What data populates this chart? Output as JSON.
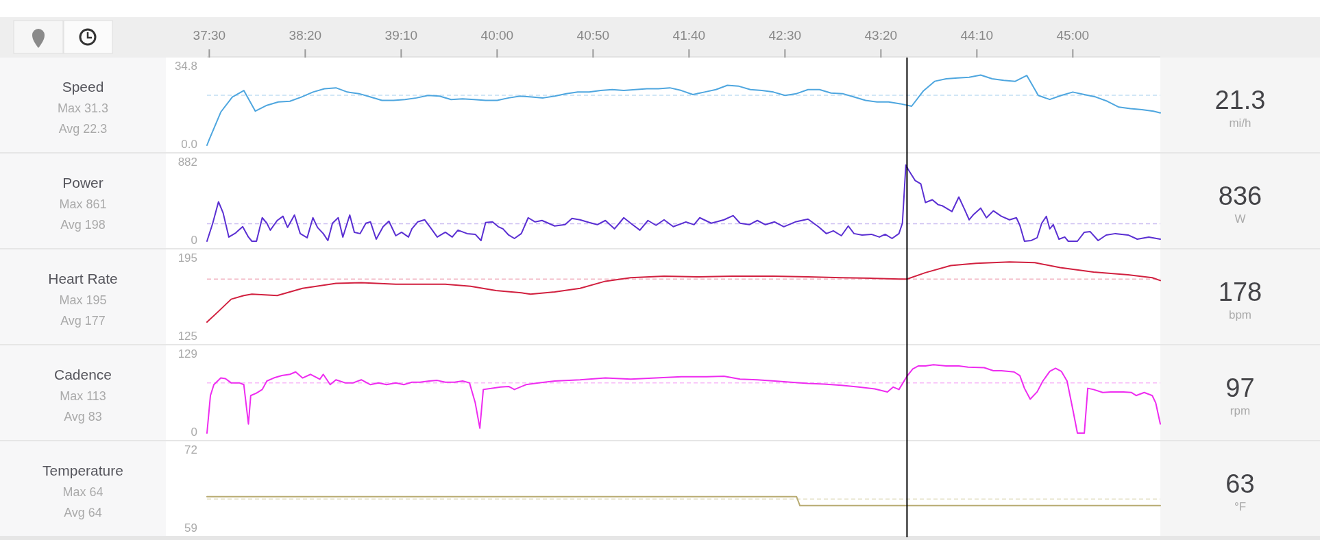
{
  "chart_data": [
    {
      "type": "line",
      "title": "Speed",
      "color": "#4ea6df",
      "xlim": [
        37.48,
        45.76
      ],
      "ylim": [
        0,
        34.8
      ],
      "xticks": [
        {
          "value": 37.5,
          "label": "37:30"
        },
        {
          "value": 38.3333,
          "label": "38:20"
        },
        {
          "value": 39.1667,
          "label": "39:10"
        },
        {
          "value": 40,
          "label": "40:00"
        },
        {
          "value": 40.8333,
          "label": "40:50"
        },
        {
          "value": 41.6667,
          "label": "41:40"
        },
        {
          "value": 42.5,
          "label": "42:30"
        },
        {
          "value": 43.3333,
          "label": "43:20"
        },
        {
          "value": 44.1667,
          "label": "44:10"
        },
        {
          "value": 45,
          "label": "45:00"
        }
      ],
      "yticks": [
        {
          "value": 0,
          "label": "0.0"
        },
        {
          "value": 34.8,
          "label": "34.8"
        }
      ],
      "x": [
        37.48,
        37.5,
        37.6,
        37.7,
        37.8,
        37.9,
        38.0,
        38.1,
        38.2,
        38.3,
        38.4,
        38.5,
        38.6,
        38.7,
        38.8,
        38.9,
        39.0,
        39.1,
        39.2,
        39.3,
        39.4,
        39.5,
        39.6,
        39.7,
        39.8,
        39.9,
        40.0,
        40.1,
        40.2,
        40.3,
        40.4,
        40.5,
        40.6,
        40.7,
        40.8,
        40.9,
        41.0,
        41.1,
        41.2,
        41.3,
        41.4,
        41.5,
        41.6,
        41.7,
        41.8,
        41.9,
        42.0,
        42.1,
        42.2,
        42.3,
        42.4,
        42.5,
        42.6,
        42.7,
        42.8,
        42.9,
        43.0,
        43.1,
        43.2,
        43.3,
        43.4,
        43.5,
        43.6,
        43.7,
        43.8,
        43.9,
        44.0,
        44.1,
        44.2,
        44.3,
        44.4,
        44.5,
        44.6,
        44.7,
        44.8,
        44.9,
        45.0,
        45.1,
        45.2,
        45.3,
        45.4,
        45.5,
        45.6,
        45.7,
        45.76
      ],
      "values": [
        0,
        2.6,
        14.8,
        21.5,
        24.4,
        15.2,
        17.8,
        19.3,
        19.6,
        21.5,
        23.7,
        25.2,
        25.6,
        23.7,
        23.0,
        21.5,
        20.0,
        20.0,
        20.4,
        21.1,
        22.2,
        21.9,
        20.4,
        20.7,
        20.4,
        20.0,
        20.0,
        21.1,
        21.9,
        21.5,
        21.1,
        21.9,
        23.0,
        23.7,
        23.7,
        24.4,
        24.8,
        24.4,
        24.8,
        25.2,
        25.2,
        25.6,
        24.4,
        22.6,
        23.7,
        24.8,
        26.7,
        26.3,
        24.8,
        24.4,
        23.7,
        22.2,
        23.0,
        24.8,
        24.8,
        23.3,
        23.0,
        21.5,
        20.0,
        19.3,
        19.3,
        18.5,
        17.4,
        24.1,
        28.5,
        29.6,
        30.0,
        30.3,
        31.3,
        29.6,
        28.9,
        28.5,
        31.1,
        22.2,
        20.4,
        22.2,
        23.7,
        22.6,
        21.5,
        19.6,
        17.0,
        16.3,
        15.9,
        15.2,
        14.4
      ],
      "annotations": [
        "Max 31.3",
        "Avg 22.3",
        "21.3",
        "mi/h"
      ],
      "ref_lines": [
        {
          "axis": "y",
          "value": 22.3,
          "color": "#c2def3",
          "line_style": "dashed"
        },
        {
          "axis": "x",
          "value": 43.56,
          "color": "#000000",
          "line_style": "solid"
        }
      ]
    },
    {
      "type": "line",
      "title": "Power",
      "color": "#5a2fd2",
      "xlim": [
        37.48,
        45.76
      ],
      "ylim": [
        0,
        882
      ],
      "tick_labels": "y",
      "yticks": [
        0,
        882
      ],
      "x": [
        37.48,
        37.53,
        37.58,
        37.62,
        37.67,
        37.73,
        37.79,
        37.84,
        37.87,
        37.91,
        37.96,
        38.0,
        38.03,
        38.09,
        38.14,
        38.18,
        38.24,
        38.29,
        38.35,
        38.4,
        38.44,
        38.49,
        38.53,
        38.57,
        38.62,
        38.66,
        38.72,
        38.76,
        38.81,
        38.86,
        38.9,
        38.95,
        39.01,
        39.06,
        39.12,
        39.17,
        39.23,
        39.26,
        39.31,
        39.37,
        39.42,
        39.48,
        39.55,
        39.61,
        39.66,
        39.74,
        39.81,
        39.86,
        39.9,
        39.96,
        40.01,
        40.05,
        40.1,
        40.15,
        40.21,
        40.27,
        40.33,
        40.39,
        40.5,
        40.59,
        40.65,
        40.72,
        40.8,
        40.87,
        40.94,
        41.02,
        41.1,
        41.16,
        41.24,
        41.31,
        41.38,
        41.45,
        41.53,
        41.64,
        41.71,
        41.76,
        41.86,
        41.97,
        42.05,
        42.11,
        42.19,
        42.26,
        42.33,
        42.41,
        42.49,
        42.59,
        42.7,
        42.79,
        42.86,
        42.92,
        42.99,
        43.05,
        43.1,
        43.17,
        43.25,
        43.32,
        43.37,
        43.43,
        43.49,
        43.52,
        43.55,
        43.57,
        43.63,
        43.68,
        43.72,
        43.78,
        43.83,
        43.87,
        43.9,
        43.95,
        44.01,
        44.06,
        44.1,
        44.14,
        44.2,
        44.25,
        44.31,
        44.38,
        44.45,
        44.51,
        44.54,
        44.58,
        44.64,
        44.69,
        44.73,
        44.77,
        44.8,
        44.83,
        44.88,
        44.93,
        44.96,
        45.04,
        45.1,
        45.15,
        45.22,
        45.29,
        45.37,
        45.48,
        45.56,
        45.66,
        45.76
      ],
      "values": [
        0,
        203,
        445,
        320,
        47,
        94,
        164,
        47,
        0,
        0,
        265,
        203,
        125,
        234,
        281,
        156,
        296,
        86,
        39,
        265,
        156,
        86,
        8,
        203,
        265,
        47,
        296,
        101,
        86,
        203,
        218,
        23,
        164,
        226,
        62,
        101,
        47,
        140,
        218,
        242,
        156,
        47,
        101,
        47,
        125,
        86,
        78,
        8,
        211,
        218,
        164,
        140,
        70,
        31,
        86,
        265,
        218,
        234,
        172,
        187,
        257,
        242,
        211,
        187,
        234,
        140,
        265,
        203,
        125,
        234,
        180,
        242,
        164,
        218,
        187,
        265,
        203,
        242,
        289,
        203,
        187,
        234,
        187,
        218,
        164,
        218,
        250,
        164,
        86,
        117,
        62,
        172,
        86,
        70,
        78,
        47,
        78,
        31,
        86,
        203,
        861,
        811,
        686,
        647,
        437,
        468,
        413,
        398,
        374,
        335,
        499,
        359,
        242,
        304,
        374,
        265,
        343,
        281,
        242,
        265,
        180,
        0,
        8,
        39,
        203,
        281,
        140,
        187,
        23,
        47,
        0,
        0,
        101,
        109,
        8,
        70,
        86,
        70,
        23,
        47,
        23
      ],
      "annotations": [
        "Max 861",
        "Avg 198",
        "836",
        "W"
      ],
      "ref_lines": [
        {
          "axis": "y",
          "value": 198,
          "color": "#cbbdf0",
          "line_style": "dashed"
        },
        {
          "axis": "x",
          "value": 43.56,
          "color": "#000000",
          "line_style": "solid"
        }
      ]
    },
    {
      "type": "line",
      "title": "Heart Rate",
      "color": "#d1203f",
      "xlim": [
        37.48,
        45.76
      ],
      "ylim": [
        125,
        195
      ],
      "tick_labels": "y",
      "yticks": [
        125,
        195
      ],
      "x": [
        37.48,
        37.58,
        37.69,
        37.8,
        37.87,
        38.09,
        38.31,
        38.6,
        38.82,
        39.12,
        39.55,
        39.77,
        39.99,
        40.21,
        40.29,
        40.5,
        40.72,
        40.94,
        41.16,
        41.45,
        41.75,
        42.04,
        42.4,
        42.7,
        42.99,
        43.28,
        43.5,
        43.56,
        43.72,
        43.94,
        44.16,
        44.45,
        44.67,
        44.89,
        45.18,
        45.48,
        45.69,
        45.76
      ],
      "values": [
        138.5,
        148.1,
        159.0,
        162.3,
        163.5,
        162.3,
        168.7,
        173.2,
        173.8,
        172.5,
        172.5,
        170.6,
        166.7,
        164.8,
        163.5,
        165.5,
        168.7,
        175.1,
        178.3,
        179.6,
        179.0,
        179.6,
        179.6,
        179.0,
        178.3,
        177.7,
        177.0,
        177.0,
        182.8,
        189.2,
        191.2,
        192.4,
        191.8,
        187.3,
        183.4,
        180.9,
        178.3,
        175.7
      ],
      "annotations": [
        "Max 195",
        "Avg 177",
        "178",
        "bpm"
      ],
      "ref_lines": [
        {
          "axis": "y",
          "value": 177,
          "color": "#f1b3c1",
          "line_style": "dashed"
        },
        {
          "axis": "x",
          "value": 43.56,
          "color": "#000000",
          "line_style": "solid"
        }
      ]
    },
    {
      "type": "line",
      "title": "Cadence",
      "color": "#ee2cf0",
      "xlim": [
        37.48,
        45.76
      ],
      "ylim": [
        0,
        129
      ],
      "tick_labels": "y",
      "yticks": [
        0,
        129
      ],
      "x": [
        37.48,
        37.51,
        37.54,
        37.6,
        37.64,
        37.69,
        37.76,
        37.8,
        37.84,
        37.86,
        37.91,
        37.96,
        38.0,
        38.06,
        38.13,
        38.2,
        38.25,
        38.31,
        38.38,
        38.46,
        38.49,
        38.55,
        38.6,
        38.68,
        38.75,
        38.82,
        38.9,
        38.97,
        39.04,
        39.12,
        39.19,
        39.26,
        39.33,
        39.41,
        39.48,
        39.55,
        39.63,
        39.7,
        39.76,
        39.81,
        39.85,
        39.88,
        39.96,
        40.03,
        40.1,
        40.15,
        40.25,
        40.36,
        40.5,
        40.72,
        40.94,
        41.16,
        41.38,
        41.6,
        41.82,
        41.97,
        42.11,
        42.26,
        42.41,
        42.55,
        42.7,
        42.84,
        42.99,
        43.14,
        43.28,
        43.39,
        43.44,
        43.49,
        43.56,
        43.61,
        43.66,
        43.72,
        43.79,
        43.9,
        44.01,
        44.09,
        44.23,
        44.31,
        44.38,
        44.49,
        44.54,
        44.58,
        44.63,
        44.69,
        44.74,
        44.8,
        44.85,
        44.9,
        44.95,
        45.0,
        45.04,
        45.1,
        45.13,
        45.18,
        45.26,
        45.33,
        45.44,
        45.51,
        45.55,
        45.62,
        45.69,
        45.72,
        45.76
      ],
      "values": [
        0,
        62,
        80,
        91,
        90,
        83,
        83,
        80,
        15,
        62,
        66,
        72,
        86,
        91,
        95,
        97,
        101,
        91,
        97,
        89,
        97,
        80,
        88,
        83,
        83,
        88,
        80,
        83,
        80,
        83,
        80,
        84,
        84,
        86,
        87,
        84,
        84,
        86,
        83,
        50,
        8,
        72,
        74,
        76,
        77,
        72,
        80,
        83,
        86,
        88,
        91,
        89,
        91,
        93,
        93,
        94,
        89,
        88,
        86,
        84,
        82,
        81,
        79,
        76,
        73,
        68,
        76,
        72,
        94,
        106,
        111,
        111,
        113,
        111,
        111,
        109,
        108,
        103,
        103,
        101,
        95,
        74,
        56,
        68,
        86,
        102,
        107,
        102,
        86,
        39,
        0,
        0,
        74,
        72,
        67,
        68,
        68,
        67,
        62,
        67,
        62,
        50,
        15
      ],
      "annotations": [
        "Max 113",
        "Avg 83",
        "97",
        "rpm"
      ],
      "ref_lines": [
        {
          "axis": "y",
          "value": 83,
          "color": "#f7b8f7",
          "line_style": "dashed"
        },
        {
          "axis": "x",
          "value": 43.56,
          "color": "#000000",
          "line_style": "solid"
        }
      ]
    },
    {
      "type": "line",
      "title": "Temperature",
      "color": "#b8ab72",
      "xlim": [
        37.48,
        45.76
      ],
      "ylim": [
        59,
        72
      ],
      "tick_labels": "y",
      "yticks": [
        59,
        72
      ],
      "x": [
        37.48,
        42.6,
        42.63,
        45.76
      ],
      "values": [
        64.4,
        64.4,
        62.9,
        62.9
      ],
      "annotations": [
        "Max 64",
        "Avg 64",
        "63",
        "°F"
      ],
      "ref_lines": [
        {
          "axis": "y",
          "value": 64,
          "color": "#e3e0c6",
          "line_style": "dashed"
        },
        {
          "axis": "x",
          "value": 43.56,
          "color": "#000000",
          "line_style": "solid"
        }
      ]
    }
  ]
}
